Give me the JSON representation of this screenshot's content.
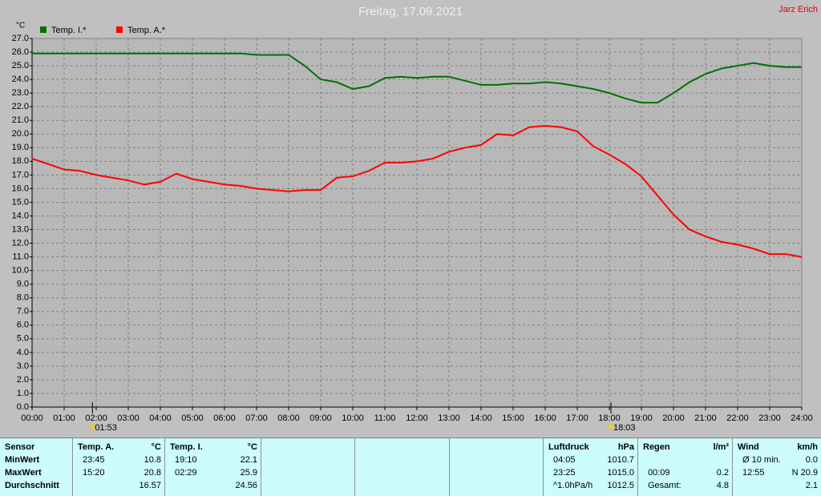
{
  "chart_data": {
    "type": "line",
    "title": "Freitag, 17.09.2021",
    "author": "Jarz Erich",
    "y_label": "°C",
    "x": [
      0,
      0.5,
      1,
      1.5,
      2,
      2.5,
      3,
      3.5,
      4,
      4.5,
      5,
      5.5,
      6,
      6.5,
      7,
      7.5,
      8,
      8.5,
      9,
      9.5,
      10,
      10.5,
      11,
      11.5,
      12,
      12.5,
      13,
      13.5,
      14,
      14.5,
      15,
      15.5,
      16,
      16.5,
      17,
      17.5,
      18,
      18.5,
      19,
      19.5,
      20,
      20.5,
      21,
      21.5,
      22,
      22.5,
      23,
      23.5,
      24
    ],
    "series": [
      {
        "name": "Temp. I.*",
        "color": "#007000",
        "values": [
          25.9,
          25.9,
          25.9,
          25.9,
          25.9,
          25.9,
          25.9,
          25.9,
          25.9,
          25.9,
          25.9,
          25.9,
          25.9,
          25.9,
          25.8,
          25.8,
          25.8,
          25.0,
          24.0,
          23.8,
          23.3,
          23.5,
          24.1,
          24.2,
          24.1,
          24.2,
          24.2,
          23.9,
          23.6,
          23.6,
          23.7,
          23.7,
          23.8,
          23.7,
          23.5,
          23.3,
          23.0,
          22.6,
          22.3,
          22.3,
          23.0,
          23.8,
          24.4,
          24.8,
          25.0,
          25.2,
          25.0,
          24.9,
          24.9
        ]
      },
      {
        "name": "Temp. A.*",
        "color": "#ff0000",
        "values": [
          18.2,
          17.8,
          17.4,
          17.3,
          17.0,
          16.8,
          16.6,
          16.3,
          16.5,
          17.1,
          16.7,
          16.5,
          16.3,
          16.2,
          16.0,
          15.9,
          15.8,
          15.9,
          15.9,
          16.8,
          16.9,
          17.3,
          17.9,
          17.9,
          18.0,
          18.2,
          18.7,
          19.0,
          19.2,
          20.0,
          19.9,
          20.5,
          20.6,
          20.5,
          20.2,
          19.1,
          18.5,
          17.8,
          16.9,
          15.5,
          14.1,
          13.0,
          12.5,
          12.1,
          11.9,
          11.6,
          11.2,
          11.2,
          11.0
        ]
      }
    ],
    "xlim": [
      0,
      24
    ],
    "xticks": [
      {
        "value": 0,
        "label": "00:00"
      },
      {
        "value": 1,
        "label": "01:00"
      },
      {
        "value": 2,
        "label": "02:00"
      },
      {
        "value": 3,
        "label": "03:00"
      },
      {
        "value": 4,
        "label": "04:00"
      },
      {
        "value": 5,
        "label": "05:00"
      },
      {
        "value": 6,
        "label": "06:00"
      },
      {
        "value": 7,
        "label": "07:00"
      },
      {
        "value": 8,
        "label": "08:00"
      },
      {
        "value": 9,
        "label": "09:00"
      },
      {
        "value": 10,
        "label": "10:00"
      },
      {
        "value": 11,
        "label": "11:00"
      },
      {
        "value": 12,
        "label": "12:00"
      },
      {
        "value": 13,
        "label": "13:00"
      },
      {
        "value": 14,
        "label": "14:00"
      },
      {
        "value": 15,
        "label": "15:00"
      },
      {
        "value": 16,
        "label": "16:00"
      },
      {
        "value": 17,
        "label": "17:00"
      },
      {
        "value": 18,
        "label": "18:00"
      },
      {
        "value": 19,
        "label": "19:00"
      },
      {
        "value": 20,
        "label": "20:00"
      },
      {
        "value": 21,
        "label": "21:00"
      },
      {
        "value": 22,
        "label": "22:00"
      },
      {
        "value": 23,
        "label": "23:00"
      },
      {
        "value": 24,
        "label": "24:00"
      }
    ],
    "ylim": [
      0,
      27
    ],
    "yticks": [
      {
        "value": 0,
        "label": "0.0"
      },
      {
        "value": 1,
        "label": "1.0"
      },
      {
        "value": 2,
        "label": "2.0"
      },
      {
        "value": 3,
        "label": "3.0"
      },
      {
        "value": 4,
        "label": "4.0"
      },
      {
        "value": 5,
        "label": "5.0"
      },
      {
        "value": 6,
        "label": "6.0"
      },
      {
        "value": 7,
        "label": "7.0"
      },
      {
        "value": 8,
        "label": "8.0"
      },
      {
        "value": 9,
        "label": "9.0"
      },
      {
        "value": 10,
        "label": "10.0"
      },
      {
        "value": 11,
        "label": "11.0"
      },
      {
        "value": 12,
        "label": "12.0"
      },
      {
        "value": 13,
        "label": "13.0"
      },
      {
        "value": 14,
        "label": "14.0"
      },
      {
        "value": 15,
        "label": "15.0"
      },
      {
        "value": 16,
        "label": "16.0"
      },
      {
        "value": 17,
        "label": "17.0"
      },
      {
        "value": 18,
        "label": "18.0"
      },
      {
        "value": 19,
        "label": "19.0"
      },
      {
        "value": 20,
        "label": "20.0"
      },
      {
        "value": 21,
        "label": "21.0"
      },
      {
        "value": 22,
        "label": "22.0"
      },
      {
        "value": 23,
        "label": "23.0"
      },
      {
        "value": 24,
        "label": "24.0"
      },
      {
        "value": 25,
        "label": "25.0"
      },
      {
        "value": 26,
        "label": "26.0"
      },
      {
        "value": 27,
        "label": "27.0"
      }
    ],
    "grid": true,
    "annotations": [
      {
        "label": "01:53",
        "x": 1.883
      },
      {
        "label": "18:03",
        "x": 18.05
      }
    ]
  },
  "table": {
    "columns": [
      {
        "header": {
          "label": "Sensor"
        },
        "rows": [
          {
            "label": "MinWert"
          },
          {
            "label": "MaxWert"
          },
          {
            "label": "Durchschnitt"
          }
        ]
      },
      {
        "header": {
          "label": "Temp. A.",
          "unit": "°C"
        },
        "rows": [
          {},
          {
            "label": "23:45",
            "value": "10.8"
          },
          {
            "label": "15:20",
            "value": "20.8"
          },
          {
            "value": "16.57"
          }
        ]
      },
      {
        "header": {
          "label": "Temp. I.",
          "unit": "°C"
        },
        "rows": [
          {},
          {
            "label": "19:10",
            "value": "22.1"
          },
          {
            "label": "02:29",
            "value": "25.9"
          },
          {
            "value": "24.56"
          }
        ]
      },
      {},
      {},
      {},
      {
        "header": {
          "label": "Luftdruck",
          "unit": "hPa"
        },
        "rows": [
          {},
          {
            "label": "04:05",
            "value": "1010.7"
          },
          {
            "label": "23:25",
            "value": "1015.0"
          },
          {
            "label": "^1.0hPa/h",
            "value": "1012.5"
          }
        ]
      },
      {
        "header": {
          "label": "Regen",
          "unit": "l/m²"
        },
        "rows": [
          {},
          {},
          {
            "label": "00:09",
            "value": "0.2"
          },
          {
            "label": "Gesamt:",
            "value": "4.8"
          }
        ]
      },
      {
        "header": {
          "label": "Wind",
          "unit": "km/h"
        },
        "rows": [
          {},
          {
            "label": "Ø 10 min.",
            "value": "0.0"
          },
          {
            "label": "12:55",
            "value": "N 20.9"
          },
          {
            "value": "2.1"
          }
        ]
      }
    ]
  }
}
